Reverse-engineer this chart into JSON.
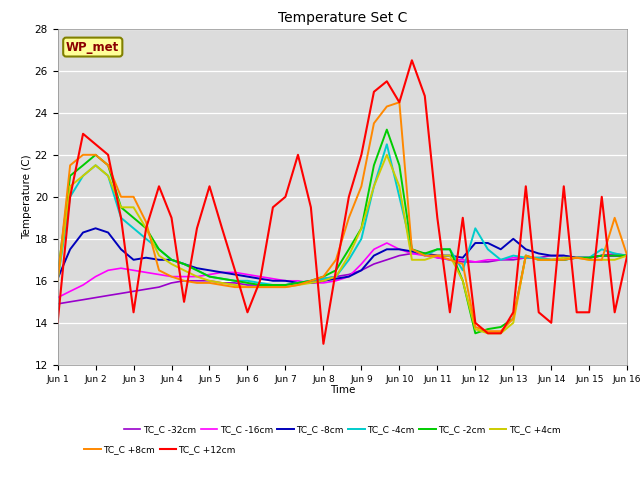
{
  "title": "Temperature Set C",
  "xlabel": "Time",
  "ylabel": "Temperature (C)",
  "ylim": [
    12,
    28
  ],
  "xlim": [
    0,
    15
  ],
  "xtick_labels": [
    "Jun 1",
    "Jun 2",
    "Jun 3",
    "Jun 4",
    "Jun 5",
    "Jun 6",
    "Jun 7",
    "Jun 8",
    "Jun 9",
    "Jun 10",
    "Jun 11",
    "Jun 12",
    "Jun 13",
    "Jun 14",
    "Jun 15",
    "Jun 16"
  ],
  "ytick_values": [
    12,
    14,
    16,
    18,
    20,
    22,
    24,
    26,
    28
  ],
  "annotation_text": "WP_met",
  "annotation_color": "#8B0000",
  "annotation_bg": "#FFFF99",
  "annotation_edge": "#808000",
  "bg_color": "#DCDCDC",
  "series_order": [
    "TC_C -32cm",
    "TC_C -16cm",
    "TC_C -8cm",
    "TC_C -4cm",
    "TC_C -2cm",
    "TC_C +4cm",
    "TC_C +8cm",
    "TC_C +12cm"
  ],
  "series_colors": {
    "TC_C -32cm": "#9900CC",
    "TC_C -16cm": "#FF00FF",
    "TC_C -8cm": "#0000BB",
    "TC_C -4cm": "#00CCCC",
    "TC_C -2cm": "#00CC00",
    "TC_C +4cm": "#CCCC00",
    "TC_C +8cm": "#FF8800",
    "TC_C +12cm": "#FF0000"
  },
  "series_lw": {
    "TC_C -32cm": 1.2,
    "TC_C -16cm": 1.2,
    "TC_C -8cm": 1.4,
    "TC_C -4cm": 1.4,
    "TC_C -2cm": 1.4,
    "TC_C +4cm": 1.4,
    "TC_C +8cm": 1.4,
    "TC_C +12cm": 1.5
  },
  "x": [
    0,
    0.33,
    0.67,
    1,
    1.33,
    1.67,
    2,
    2.33,
    2.67,
    3,
    3.33,
    3.67,
    4,
    4.33,
    4.67,
    5,
    5.33,
    5.67,
    6,
    6.33,
    6.67,
    7,
    7.33,
    7.67,
    8,
    8.33,
    8.67,
    9,
    9.33,
    9.67,
    10,
    10.33,
    10.67,
    11,
    11.33,
    11.67,
    12,
    12.33,
    12.67,
    13,
    13.33,
    13.67,
    14,
    14.33,
    14.67,
    15
  ],
  "data": {
    "TC_C -32cm": [
      14.9,
      15.0,
      15.1,
      15.2,
      15.3,
      15.4,
      15.5,
      15.6,
      15.7,
      15.9,
      16.0,
      16.0,
      16.0,
      15.9,
      15.9,
      15.8,
      15.8,
      15.8,
      15.8,
      15.9,
      16.0,
      16.1,
      16.2,
      16.3,
      16.5,
      16.8,
      17.0,
      17.2,
      17.3,
      17.3,
      17.1,
      17.0,
      16.9,
      16.9,
      16.9,
      17.0,
      17.0,
      17.1,
      17.1,
      17.2,
      17.2,
      17.1,
      17.1,
      17.2,
      17.2,
      17.2
    ],
    "TC_C -16cm": [
      15.2,
      15.5,
      15.8,
      16.2,
      16.5,
      16.6,
      16.5,
      16.4,
      16.3,
      16.2,
      16.2,
      16.2,
      16.3,
      16.4,
      16.4,
      16.3,
      16.2,
      16.1,
      16.0,
      16.0,
      15.9,
      15.9,
      16.0,
      16.2,
      16.8,
      17.5,
      17.8,
      17.5,
      17.3,
      17.2,
      17.1,
      17.0,
      17.0,
      16.9,
      17.0,
      17.0,
      17.1,
      17.1,
      17.1,
      17.0,
      17.0,
      17.1,
      17.1,
      17.2,
      17.3,
      17.2
    ],
    "TC_C -8cm": [
      16.1,
      17.5,
      18.3,
      18.5,
      18.3,
      17.5,
      17.0,
      17.1,
      17.0,
      17.0,
      16.8,
      16.6,
      16.5,
      16.4,
      16.3,
      16.2,
      16.1,
      16.0,
      16.0,
      15.9,
      15.9,
      16.0,
      16.1,
      16.2,
      16.5,
      17.2,
      17.5,
      17.5,
      17.4,
      17.3,
      17.2,
      17.2,
      17.1,
      17.8,
      17.8,
      17.5,
      18.0,
      17.5,
      17.3,
      17.2,
      17.2,
      17.1,
      17.1,
      17.2,
      17.2,
      17.2
    ],
    "TC_C -4cm": [
      16.0,
      20.0,
      21.0,
      21.5,
      21.0,
      19.0,
      18.5,
      18.0,
      17.5,
      17.0,
      16.8,
      16.5,
      16.2,
      16.1,
      16.0,
      16.0,
      15.9,
      15.8,
      15.8,
      15.9,
      16.0,
      16.1,
      16.2,
      17.0,
      18.0,
      20.5,
      22.5,
      20.0,
      17.5,
      17.2,
      17.5,
      17.5,
      16.5,
      18.5,
      17.5,
      17.0,
      17.2,
      17.1,
      17.1,
      17.0,
      17.0,
      17.1,
      17.1,
      17.5,
      17.3,
      17.2
    ],
    "TC_C -2cm": [
      16.2,
      21.0,
      21.5,
      22.0,
      21.5,
      19.5,
      19.0,
      18.5,
      17.5,
      17.0,
      16.8,
      16.5,
      16.2,
      16.1,
      16.0,
      15.9,
      15.8,
      15.8,
      15.8,
      15.9,
      16.0,
      16.2,
      16.5,
      17.5,
      18.5,
      21.5,
      23.2,
      21.5,
      17.5,
      17.3,
      17.5,
      17.5,
      16.0,
      13.5,
      13.7,
      13.8,
      14.2,
      17.2,
      17.0,
      17.0,
      17.0,
      17.1,
      17.1,
      17.2,
      17.2,
      17.2
    ],
    "TC_C +4cm": [
      16.0,
      20.5,
      21.0,
      21.5,
      21.0,
      19.5,
      19.5,
      18.5,
      17.2,
      16.8,
      16.5,
      16.2,
      16.0,
      15.9,
      15.8,
      15.7,
      15.7,
      15.7,
      15.7,
      15.8,
      15.9,
      16.0,
      16.2,
      17.2,
      18.5,
      20.5,
      22.0,
      20.5,
      17.0,
      17.0,
      17.2,
      17.2,
      16.0,
      13.7,
      13.5,
      13.5,
      14.0,
      17.2,
      17.0,
      17.0,
      17.1,
      17.1,
      17.0,
      17.0,
      17.0,
      17.2
    ],
    "TC_C +8cm": [
      16.0,
      21.5,
      22.0,
      22.0,
      21.5,
      20.0,
      20.0,
      18.8,
      16.5,
      16.2,
      16.0,
      15.9,
      15.9,
      15.8,
      15.7,
      15.7,
      15.7,
      15.7,
      15.7,
      15.8,
      16.0,
      16.2,
      17.0,
      19.0,
      20.5,
      23.5,
      24.3,
      24.5,
      17.5,
      17.2,
      17.2,
      17.0,
      16.8,
      13.8,
      13.6,
      13.6,
      14.2,
      17.2,
      17.0,
      17.0,
      17.0,
      17.1,
      17.0,
      17.0,
      19.0,
      17.2
    ],
    "TC_C +12cm": [
      14.0,
      20.0,
      23.0,
      22.5,
      22.0,
      19.0,
      14.5,
      18.5,
      20.5,
      19.0,
      15.0,
      18.5,
      20.5,
      18.5,
      16.5,
      14.5,
      16.0,
      19.5,
      20.0,
      22.0,
      19.5,
      13.0,
      16.5,
      20.0,
      22.0,
      25.0,
      25.5,
      24.5,
      26.5,
      24.8,
      19.0,
      14.5,
      19.0,
      14.0,
      13.5,
      13.5,
      14.5,
      20.5,
      14.5,
      14.0,
      20.5,
      14.5,
      14.5,
      20.0,
      14.5,
      17.2
    ]
  },
  "legend_order": [
    "TC_C -32cm",
    "TC_C -16cm",
    "TC_C -8cm",
    "TC_C -4cm",
    "TC_C -2cm",
    "TC_C +4cm",
    "TC_C +8cm",
    "TC_C +12cm"
  ]
}
